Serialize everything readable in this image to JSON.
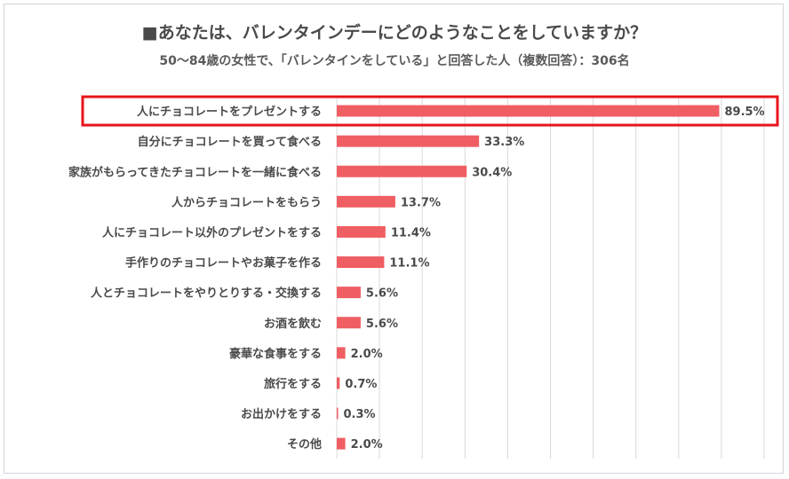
{
  "chart_data": {
    "type": "bar",
    "orientation": "horizontal",
    "title": "■あなたは、バレンタインデーにどのようなことをしていますか？",
    "subtitle": "50～84歳の女性で、「バレンタインをしている」と回答した人（複数回答）：306名",
    "categories": [
      "人にチョコレートをプレゼントする",
      "自分にチョコレートを買って食べる",
      "家族がもらってきたチョコレートを一緒に食べる",
      "人からチョコレートをもらう",
      "人にチョコレート以外のプレゼントをする",
      "手作りのチョコレートやお菓子を作る",
      "人とチョコレートをやりとりする・交換する",
      "お酒を飲む",
      "豪華な食事をする",
      "旅行をする",
      "お出かけをする",
      "その他"
    ],
    "values": [
      89.5,
      33.3,
      30.4,
      13.7,
      11.4,
      11.1,
      5.6,
      5.6,
      2.0,
      0.7,
      0.3,
      2.0
    ],
    "value_labels": [
      "89.5%",
      "33.3%",
      "30.4%",
      "13.7%",
      "11.4%",
      "11.1%",
      "5.6%",
      "5.6%",
      "2.0%",
      "0.7%",
      "0.3%",
      "2.0%"
    ],
    "xlim": [
      0,
      100
    ],
    "grid_step": 10,
    "highlighted_index": 0,
    "colors": {
      "bar": "#ef5e63",
      "highlight": "#e8141b",
      "grid": "#d9d9d9",
      "text": "#4a4a4a"
    }
  }
}
